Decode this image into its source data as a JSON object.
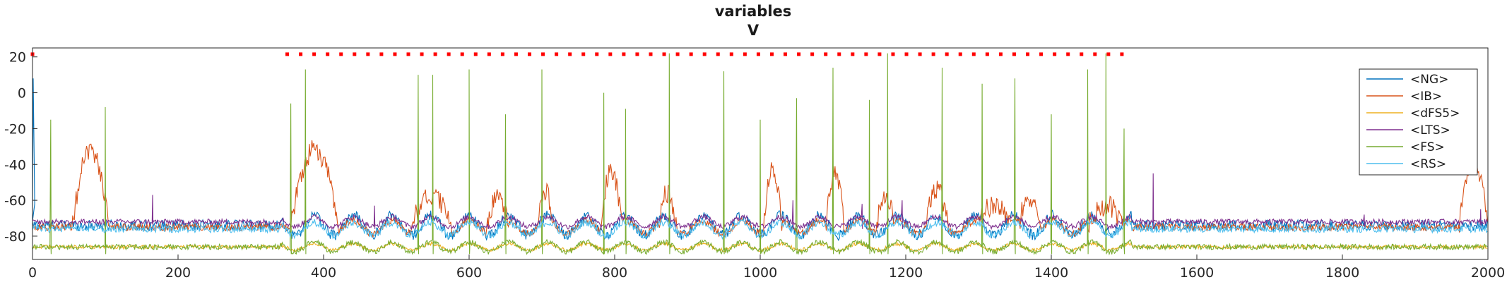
{
  "chart_data": {
    "type": "line",
    "title": "variables",
    "subtitle": "V",
    "xlabel": "",
    "ylabel": "",
    "xlim": [
      0,
      2000
    ],
    "ylim": [
      -93,
      25
    ],
    "xticks": [
      0,
      200,
      400,
      600,
      800,
      1000,
      1200,
      1400,
      1600,
      1800,
      2000
    ],
    "yticks": [
      -80,
      -60,
      -40,
      -20,
      0,
      20
    ],
    "grid": false,
    "legend_position": "top-right",
    "series": [
      {
        "name": "<NG>",
        "color": "#0072BD",
        "baseline": -74,
        "noise": 6,
        "spikes": []
      },
      {
        "name": "<IB>",
        "color": "#D95319",
        "baseline": -75,
        "noise": 4,
        "bursts": [
          [
            55,
            105,
            -32
          ],
          [
            355,
            420,
            -32
          ],
          [
            520,
            575,
            -58
          ],
          [
            625,
            655,
            -58
          ],
          [
            695,
            715,
            -54
          ],
          [
            780,
            810,
            -45
          ],
          [
            860,
            885,
            -56
          ],
          [
            1005,
            1030,
            -42
          ],
          [
            1090,
            1115,
            -45
          ],
          [
            1160,
            1185,
            -58
          ],
          [
            1225,
            1260,
            -55
          ],
          [
            1300,
            1345,
            -62
          ],
          [
            1355,
            1385,
            -58
          ],
          [
            1450,
            1500,
            -63
          ],
          [
            1960,
            2000,
            -40
          ]
        ]
      },
      {
        "name": "<dFS5>",
        "color": "#EDB120",
        "baseline": -86,
        "noise": 2,
        "spikes": []
      },
      {
        "name": "<LTS>",
        "color": "#7E2F8E",
        "baseline": -72,
        "noise": 3,
        "spikes": [
          [
            165,
            -57
          ],
          [
            300,
            -72
          ],
          [
            470,
            -63
          ],
          [
            1045,
            -60
          ],
          [
            1140,
            -62
          ],
          [
            1195,
            -60
          ],
          [
            1540,
            -45
          ],
          [
            1830,
            -68
          ],
          [
            1990,
            -65
          ]
        ]
      },
      {
        "name": "<FS>",
        "color": "#77AC30",
        "baseline": -86,
        "noise": 3,
        "spikes": [
          [
            25,
            -15
          ],
          [
            100,
            -8
          ],
          [
            355,
            -6
          ],
          [
            375,
            13
          ],
          [
            530,
            10
          ],
          [
            550,
            10
          ],
          [
            600,
            13
          ],
          [
            650,
            -12
          ],
          [
            700,
            13
          ],
          [
            785,
            0
          ],
          [
            815,
            -9
          ],
          [
            875,
            22
          ],
          [
            950,
            12
          ],
          [
            1000,
            -15
          ],
          [
            1050,
            -3
          ],
          [
            1100,
            14
          ],
          [
            1150,
            -4
          ],
          [
            1175,
            22
          ],
          [
            1250,
            14
          ],
          [
            1305,
            5
          ],
          [
            1350,
            8
          ],
          [
            1400,
            -12
          ],
          [
            1450,
            13
          ],
          [
            1475,
            22
          ],
          [
            1500,
            -20
          ]
        ]
      },
      {
        "name": "<RS>",
        "color": "#4DBEEE",
        "baseline": -76,
        "noise": 4,
        "spikes": []
      }
    ],
    "marker_series": {
      "color": "#FF0000",
      "y": 21.5,
      "x_start": 350,
      "x_end": 1500,
      "step": 18.5
    }
  }
}
